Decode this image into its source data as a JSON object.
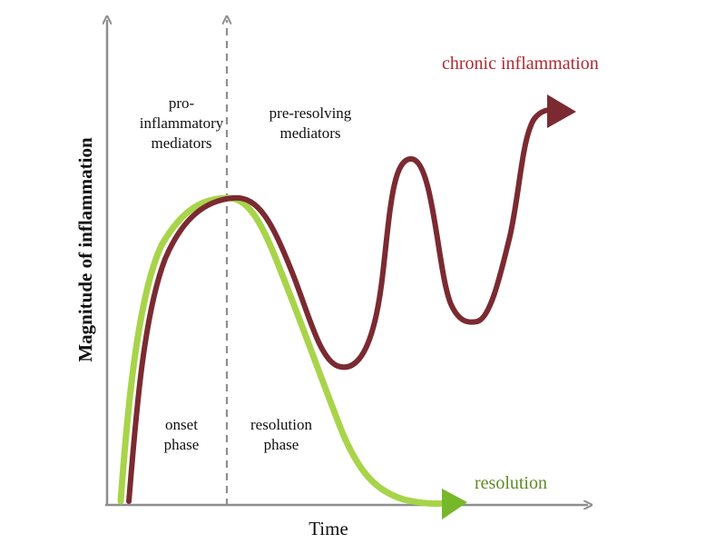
{
  "labels": {
    "pro_inflammatory": [
      "pro-",
      "inflammatory",
      "mediators"
    ],
    "pre_resolving": [
      "pre-resolving",
      "mediators"
    ],
    "onset_phase": [
      "onset",
      "phase"
    ],
    "resolution_phase": [
      "resolution",
      "phase"
    ],
    "chronic": "chronic inflammation",
    "resolution": "resolution",
    "x_axis": "Time",
    "y_axis": "Magnitude of inflammation"
  },
  "colors": {
    "axis": "#8e8e8e",
    "divider": "#8e8e8e",
    "chronic_curve": "#7b2a31",
    "resolution_curve": "#a8d44a",
    "chronic_text": "#b3282f",
    "resolution_text": "#5f8a26",
    "text": "#111111"
  }
}
